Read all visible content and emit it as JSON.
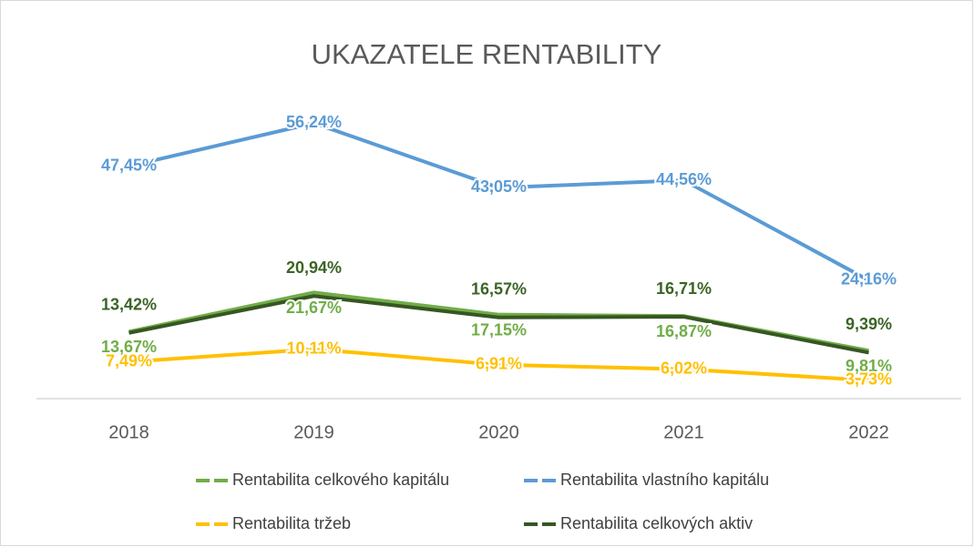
{
  "chart_data": {
    "type": "line",
    "title": "UKAZATELE RENTABILITY",
    "categories": [
      "2018",
      "2019",
      "2020",
      "2021",
      "2022"
    ],
    "series": [
      {
        "name": "Rentabilita celkového kapitálu",
        "color": "#70ad47",
        "values": [
          13.67,
          21.67,
          17.15,
          16.87,
          9.81
        ],
        "value_labels": [
          "13,67%",
          "21,67%",
          "17,15%",
          "16,87%",
          "9,81%"
        ]
      },
      {
        "name": "Rentabilita vlastního kapitálu",
        "color": "#5b9bd5",
        "values": [
          47.45,
          56.24,
          43.05,
          44.56,
          24.16
        ],
        "value_labels": [
          "47,45%",
          "56,24%",
          "43,05%",
          "44,56%",
          "24,16%"
        ]
      },
      {
        "name": "Rentabilita tržeb",
        "color": "#ffc000",
        "values": [
          7.49,
          10.11,
          6.91,
          6.02,
          3.73
        ],
        "value_labels": [
          "7,49%",
          "10,11%",
          "6,91%",
          "6,02%",
          "3,73%"
        ]
      },
      {
        "name": "Rentabilita celkových aktiv",
        "color": "#375623",
        "values": [
          13.42,
          20.94,
          16.57,
          16.71,
          9.39
        ],
        "value_labels": [
          "13,42%",
          "20,94%",
          "16,57%",
          "16,71%",
          "9,39%"
        ]
      }
    ],
    "ylim": [
      0,
      60
    ],
    "grid": false
  }
}
